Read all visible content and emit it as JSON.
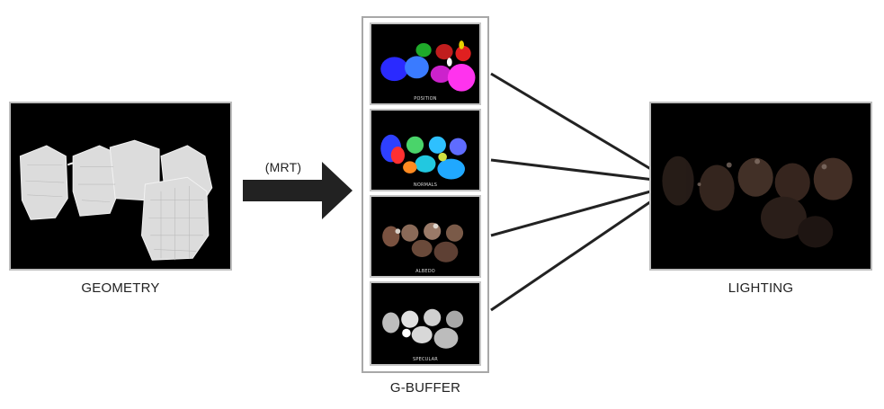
{
  "labels": {
    "geometry": "GEOMETRY",
    "mrt": "(MRT)",
    "gbuffer": "G-BUFFER",
    "lighting": "LIGHTING"
  },
  "gbuffer_layers": [
    {
      "caption": "POSITION"
    },
    {
      "caption": "NORMALS"
    },
    {
      "caption": "ALBEDO"
    },
    {
      "caption": "SPECULAR"
    }
  ],
  "colors": {
    "arrow": "#222222",
    "connector": "#222222",
    "panel_border": "#bdbdbd"
  }
}
